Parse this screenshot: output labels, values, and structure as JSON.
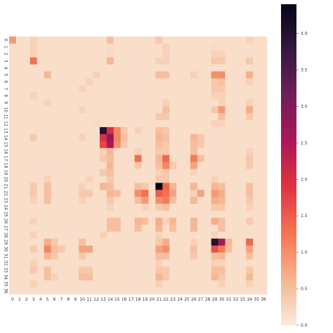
{
  "chart_data": {
    "type": "heatmap",
    "title": "",
    "xlabel": "",
    "ylabel": "",
    "x_tick_labels": [
      "0",
      "1",
      "2",
      "3",
      "4",
      "5",
      "6",
      "7",
      "8",
      "9",
      "10",
      "11",
      "12",
      "13",
      "14",
      "15",
      "16",
      "17",
      "18",
      "19",
      "20",
      "21",
      "22",
      "23",
      "24",
      "25",
      "26",
      "27",
      "28",
      "29",
      "30",
      "31",
      "32",
      "33",
      "34",
      "35",
      "36"
    ],
    "y_tick_labels": [
      "0",
      "1",
      "2",
      "3",
      "4",
      "5",
      "6",
      "7",
      "8",
      "9",
      "10",
      "11",
      "12",
      "13",
      "14",
      "15",
      "16",
      "17",
      "18",
      "19",
      "20",
      "21",
      "22",
      "23",
      "24",
      "25",
      "26",
      "27",
      "28",
      "29",
      "30",
      "31",
      "32",
      "33",
      "34",
      "35",
      "36"
    ],
    "colorbar": {
      "range": [
        0,
        4.4
      ],
      "ticks": [
        0.0,
        0.5,
        1.0,
        1.5,
        2.0,
        2.5,
        3.0,
        3.5,
        4.0
      ],
      "tick_labels": [
        "0.0",
        "0.5",
        "1.0",
        "1.5",
        "2.0",
        "2.5",
        "3.0",
        "3.5",
        "4.0"
      ],
      "colormap": "rocket_r",
      "color_stops": [
        "#faebdd",
        "#f6b48f",
        "#f37651",
        "#e13342",
        "#ad1759",
        "#701f57",
        "#35193e",
        "#03051a"
      ]
    },
    "baseline_value": 0.15,
    "cells": [
      [
        0,
        0,
        0.9
      ],
      [
        0,
        14,
        0.5
      ],
      [
        0,
        21,
        0.4
      ],
      [
        0,
        3,
        0.3
      ],
      [
        0,
        34,
        0.3
      ],
      [
        1,
        3,
        0.3
      ],
      [
        1,
        14,
        0.2
      ],
      [
        1,
        22,
        0.3
      ],
      [
        1,
        29,
        0.2
      ],
      [
        2,
        3,
        0.3
      ],
      [
        2,
        14,
        0.2
      ],
      [
        2,
        22,
        0.3
      ],
      [
        2,
        29,
        0.3
      ],
      [
        2,
        30,
        0.3
      ],
      [
        3,
        3,
        1.3
      ],
      [
        3,
        14,
        0.6
      ],
      [
        3,
        21,
        0.3
      ],
      [
        3,
        22,
        0.3
      ],
      [
        3,
        29,
        0.4
      ],
      [
        3,
        30,
        0.4
      ],
      [
        3,
        34,
        0.4
      ],
      [
        5,
        5,
        0.6
      ],
      [
        5,
        12,
        0.3
      ],
      [
        5,
        21,
        0.5
      ],
      [
        5,
        22,
        0.5
      ],
      [
        5,
        26,
        0.3
      ],
      [
        5,
        29,
        1.0
      ],
      [
        5,
        30,
        1.0
      ],
      [
        5,
        34,
        0.7
      ],
      [
        6,
        29,
        0.4
      ],
      [
        6,
        30,
        0.5
      ],
      [
        6,
        34,
        0.3
      ],
      [
        6,
        11,
        0.3
      ],
      [
        7,
        10,
        0.3
      ],
      [
        7,
        29,
        0.4
      ],
      [
        7,
        30,
        0.4
      ],
      [
        8,
        3,
        0.3
      ],
      [
        8,
        29,
        0.3
      ],
      [
        8,
        30,
        0.3
      ],
      [
        9,
        5,
        0.3
      ],
      [
        9,
        22,
        0.3
      ],
      [
        9,
        30,
        0.3
      ],
      [
        9,
        34,
        0.3
      ],
      [
        10,
        10,
        0.3
      ],
      [
        10,
        22,
        0.5
      ],
      [
        10,
        29,
        0.4
      ],
      [
        10,
        30,
        0.9
      ],
      [
        10,
        34,
        0.7
      ],
      [
        11,
        21,
        0.4
      ],
      [
        11,
        22,
        0.4
      ],
      [
        11,
        30,
        0.5
      ],
      [
        11,
        34,
        0.4
      ],
      [
        12,
        12,
        0.2
      ],
      [
        12,
        29,
        0.3
      ],
      [
        12,
        30,
        0.3
      ],
      [
        13,
        13,
        4.0
      ],
      [
        13,
        14,
        2.0
      ],
      [
        13,
        15,
        1.1
      ],
      [
        13,
        16,
        0.4
      ],
      [
        13,
        21,
        0.5
      ],
      [
        13,
        22,
        0.4
      ],
      [
        13,
        18,
        0.3
      ],
      [
        14,
        13,
        2.0
      ],
      [
        14,
        14,
        2.8
      ],
      [
        14,
        15,
        1.1
      ],
      [
        14,
        16,
        0.5
      ],
      [
        14,
        21,
        0.6
      ],
      [
        14,
        22,
        0.5
      ],
      [
        14,
        3,
        0.4
      ],
      [
        14,
        10,
        0.3
      ],
      [
        14,
        26,
        0.6
      ],
      [
        14,
        27,
        0.4
      ],
      [
        15,
        13,
        1.7
      ],
      [
        15,
        14,
        2.5
      ],
      [
        15,
        15,
        1.0
      ],
      [
        15,
        16,
        0.4
      ],
      [
        15,
        21,
        0.5
      ],
      [
        15,
        22,
        0.4
      ],
      [
        15,
        26,
        0.5
      ],
      [
        15,
        27,
        0.4
      ],
      [
        16,
        13,
        0.3
      ],
      [
        16,
        14,
        0.6
      ],
      [
        16,
        18,
        0.3
      ],
      [
        16,
        21,
        0.4
      ],
      [
        16,
        22,
        0.4
      ],
      [
        16,
        26,
        0.5
      ],
      [
        16,
        34,
        0.3
      ],
      [
        17,
        13,
        0.4
      ],
      [
        17,
        14,
        0.5
      ],
      [
        17,
        18,
        1.3
      ],
      [
        17,
        21,
        0.6
      ],
      [
        17,
        22,
        1.4
      ],
      [
        17,
        26,
        1.2
      ],
      [
        17,
        27,
        0.5
      ],
      [
        17,
        34,
        0.4
      ],
      [
        18,
        14,
        0.6
      ],
      [
        18,
        18,
        0.4
      ],
      [
        18,
        21,
        0.5
      ],
      [
        18,
        22,
        1.1
      ],
      [
        18,
        23,
        0.4
      ],
      [
        18,
        26,
        0.8
      ],
      [
        18,
        34,
        0.4
      ],
      [
        19,
        13,
        0.4
      ],
      [
        19,
        14,
        0.5
      ],
      [
        19,
        21,
        0.3
      ],
      [
        19,
        22,
        0.4
      ],
      [
        19,
        26,
        0.3
      ],
      [
        20,
        5,
        0.3
      ],
      [
        20,
        11,
        0.3
      ],
      [
        20,
        14,
        0.4
      ],
      [
        20,
        21,
        0.4
      ],
      [
        20,
        22,
        0.4
      ],
      [
        20,
        29,
        0.3
      ],
      [
        21,
        3,
        0.4
      ],
      [
        21,
        5,
        0.5
      ],
      [
        21,
        10,
        0.3
      ],
      [
        21,
        13,
        0.6
      ],
      [
        21,
        14,
        0.5
      ],
      [
        21,
        18,
        0.5
      ],
      [
        21,
        19,
        0.4
      ],
      [
        21,
        21,
        4.4
      ],
      [
        21,
        22,
        1.4
      ],
      [
        21,
        23,
        0.6
      ],
      [
        21,
        26,
        0.6
      ],
      [
        21,
        29,
        0.6
      ],
      [
        21,
        30,
        0.5
      ],
      [
        21,
        34,
        0.5
      ],
      [
        22,
        3,
        0.4
      ],
      [
        22,
        5,
        0.5
      ],
      [
        22,
        10,
        0.4
      ],
      [
        22,
        11,
        0.4
      ],
      [
        22,
        14,
        0.6
      ],
      [
        22,
        15,
        0.5
      ],
      [
        22,
        18,
        1.0
      ],
      [
        22,
        19,
        1.3
      ],
      [
        22,
        21,
        1.5
      ],
      [
        22,
        22,
        1.3
      ],
      [
        22,
        23,
        0.8
      ],
      [
        22,
        26,
        0.3
      ],
      [
        22,
        27,
        0.8
      ],
      [
        22,
        29,
        0.9
      ],
      [
        22,
        30,
        0.7
      ],
      [
        22,
        34,
        0.5
      ],
      [
        23,
        3,
        0.3
      ],
      [
        23,
        5,
        0.5
      ],
      [
        23,
        10,
        0.3
      ],
      [
        23,
        14,
        0.4
      ],
      [
        23,
        18,
        0.5
      ],
      [
        23,
        19,
        0.9
      ],
      [
        23,
        21,
        1.0
      ],
      [
        23,
        22,
        1.2
      ],
      [
        23,
        23,
        0.5
      ],
      [
        23,
        26,
        0.6
      ],
      [
        23,
        29,
        0.7
      ],
      [
        23,
        30,
        0.6
      ],
      [
        23,
        34,
        0.4
      ],
      [
        24,
        14,
        0.3
      ],
      [
        24,
        19,
        0.3
      ],
      [
        24,
        21,
        0.4
      ],
      [
        24,
        22,
        0.5
      ],
      [
        24,
        29,
        0.4
      ],
      [
        24,
        30,
        0.4
      ],
      [
        24,
        34,
        0.3
      ],
      [
        26,
        3,
        0.3
      ],
      [
        26,
        14,
        0.5
      ],
      [
        26,
        15,
        0.5
      ],
      [
        26,
        18,
        0.6
      ],
      [
        26,
        19,
        0.5
      ],
      [
        26,
        21,
        0.7
      ],
      [
        26,
        22,
        0.3
      ],
      [
        26,
        23,
        0.6
      ],
      [
        26,
        26,
        0.6
      ],
      [
        26,
        29,
        0.7
      ],
      [
        26,
        30,
        0.5
      ],
      [
        26,
        34,
        0.4
      ],
      [
        27,
        14,
        0.5
      ],
      [
        27,
        15,
        0.5
      ],
      [
        27,
        18,
        0.5
      ],
      [
        27,
        21,
        0.6
      ],
      [
        27,
        23,
        0.5
      ],
      [
        27,
        26,
        0.6
      ],
      [
        27,
        30,
        0.5
      ],
      [
        28,
        3,
        0.3
      ],
      [
        28,
        13,
        0.3
      ],
      [
        28,
        21,
        0.3
      ],
      [
        28,
        29,
        0.3
      ],
      [
        29,
        5,
        0.7
      ],
      [
        29,
        6,
        0.4
      ],
      [
        29,
        10,
        0.5
      ],
      [
        29,
        21,
        0.4
      ],
      [
        29,
        22,
        0.7
      ],
      [
        29,
        26,
        0.3
      ],
      [
        29,
        29,
        4.0
      ],
      [
        29,
        30,
        2.6
      ],
      [
        29,
        31,
        0.6
      ],
      [
        29,
        34,
        1.4
      ],
      [
        30,
        3,
        0.4
      ],
      [
        30,
        5,
        1.1
      ],
      [
        30,
        6,
        0.5
      ],
      [
        30,
        7,
        0.4
      ],
      [
        30,
        10,
        0.8
      ],
      [
        30,
        11,
        0.8
      ],
      [
        30,
        21,
        0.8
      ],
      [
        30,
        22,
        1.0
      ],
      [
        30,
        26,
        0.5
      ],
      [
        30,
        29,
        1.6
      ],
      [
        30,
        30,
        1.2
      ],
      [
        30,
        31,
        0.5
      ],
      [
        30,
        34,
        0.8
      ],
      [
        31,
        5,
        0.6
      ],
      [
        31,
        6,
        0.4
      ],
      [
        31,
        10,
        0.4
      ],
      [
        31,
        21,
        0.5
      ],
      [
        31,
        22,
        0.5
      ],
      [
        31,
        26,
        0.4
      ],
      [
        31,
        29,
        0.5
      ],
      [
        31,
        30,
        0.6
      ],
      [
        31,
        34,
        0.5
      ],
      [
        32,
        3,
        0.3
      ],
      [
        32,
        21,
        0.3
      ],
      [
        32,
        29,
        0.3
      ],
      [
        32,
        30,
        0.3
      ],
      [
        33,
        3,
        0.4
      ],
      [
        33,
        5,
        0.5
      ],
      [
        33,
        10,
        0.4
      ],
      [
        33,
        11,
        0.4
      ],
      [
        33,
        21,
        0.4
      ],
      [
        33,
        22,
        0.4
      ],
      [
        33,
        29,
        0.5
      ],
      [
        33,
        30,
        0.5
      ],
      [
        33,
        34,
        0.4
      ],
      [
        34,
        5,
        0.5
      ],
      [
        34,
        6,
        0.3
      ],
      [
        34,
        10,
        0.5
      ],
      [
        34,
        11,
        0.5
      ],
      [
        34,
        21,
        0.6
      ],
      [
        34,
        22,
        0.4
      ],
      [
        34,
        29,
        0.6
      ],
      [
        34,
        30,
        0.4
      ],
      [
        34,
        34,
        0.6
      ],
      [
        35,
        3,
        0.3
      ],
      [
        35,
        21,
        0.3
      ],
      [
        35,
        30,
        0.3
      ],
      [
        35,
        34,
        0.3
      ]
    ]
  }
}
